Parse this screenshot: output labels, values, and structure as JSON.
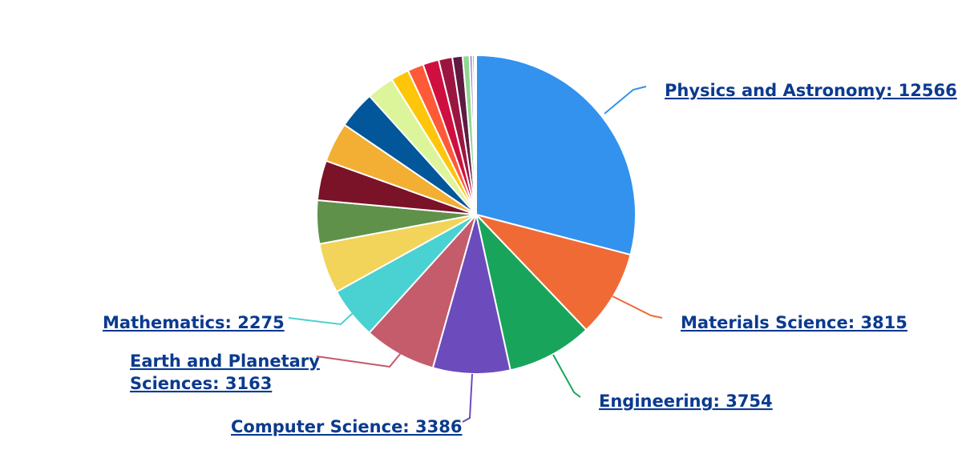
{
  "chart_data": {
    "type": "pie",
    "start": "top",
    "direction": "clockwise",
    "slices": [
      {
        "label": "Physics and Astronomy",
        "value": 12566,
        "display": "Physics and Astronomy: 12566",
        "color": "#3292ee",
        "labelled": true
      },
      {
        "label": "Materials Science",
        "value": 3815,
        "display": "Materials Science: 3815",
        "color": "#f06a35",
        "labelled": true
      },
      {
        "label": "Engineering",
        "value": 3754,
        "display": "Engineering: 3754",
        "color": "#18a55b",
        "labelled": true
      },
      {
        "label": "Computer Science",
        "value": 3386,
        "display": "Computer Science: 3386",
        "color": "#6c4bbd",
        "labelled": true
      },
      {
        "label": "Earth and Planetary Sciences",
        "value": 3163,
        "display": [
          "Earth and Planetary",
          "Sciences: 3163"
        ],
        "color": "#c45c6c",
        "labelled": true
      },
      {
        "label": "Mathematics",
        "value": 2275,
        "display": "Mathematics: 2275",
        "color": "#4ad1d1",
        "labelled": true
      },
      {
        "label": "",
        "value": 2200,
        "color": "#f2d45a",
        "labelled": false
      },
      {
        "label": "",
        "value": 1900,
        "color": "#5f914a",
        "labelled": false
      },
      {
        "label": "",
        "value": 1750,
        "color": "#7a1228",
        "labelled": false
      },
      {
        "label": "",
        "value": 1750,
        "color": "#f2af33",
        "labelled": false
      },
      {
        "label": "",
        "value": 1650,
        "color": "#02569a",
        "labelled": false
      },
      {
        "label": "",
        "value": 1200,
        "color": "#dcf59a",
        "labelled": false
      },
      {
        "label": "",
        "value": 800,
        "color": "#fec60a",
        "labelled": false
      },
      {
        "label": "",
        "value": 700,
        "color": "#ff5a38",
        "labelled": false
      },
      {
        "label": "",
        "value": 700,
        "color": "#cf0f3f",
        "labelled": false
      },
      {
        "label": "",
        "value": 600,
        "color": "#9c1540",
        "labelled": false
      },
      {
        "label": "",
        "value": 450,
        "color": "#5e1a41",
        "labelled": false
      },
      {
        "label": "",
        "value": 300,
        "color": "#8ed88f",
        "labelled": false
      },
      {
        "label": "",
        "value": 130,
        "color": "#a37ad8",
        "labelled": false
      },
      {
        "label": "",
        "value": 90,
        "color": "#4f6fb5",
        "labelled": false
      },
      {
        "label": "",
        "value": 70,
        "color": "#c7c7c7",
        "labelled": false
      }
    ]
  }
}
